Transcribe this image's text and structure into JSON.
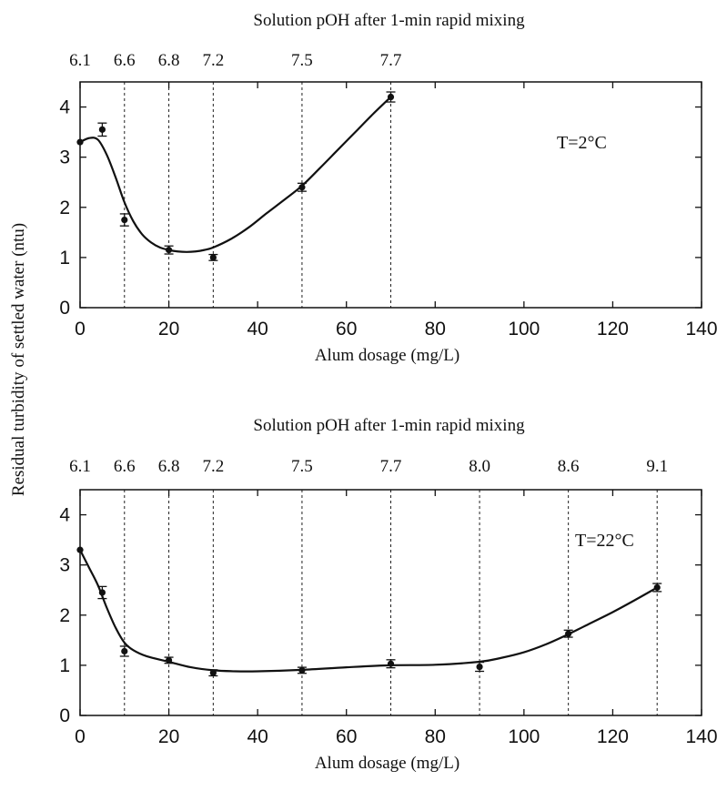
{
  "figure": {
    "shared_ylabel": "Residual turbidity of settled water (ntu)"
  },
  "chart_data": [
    {
      "type": "scatter",
      "title": "Solution pOH after 1-min rapid mixing",
      "xlabel": "Alum dosage (mg/L)",
      "ylabel": "Residual turbidity of settled water (ntu)",
      "xlim": [
        0,
        140
      ],
      "ylim": [
        0,
        4.5
      ],
      "x_ticks": [
        0,
        20,
        40,
        60,
        80,
        100,
        120,
        140
      ],
      "y_ticks": [
        0,
        1,
        2,
        3,
        4
      ],
      "annotation": "T=2°C",
      "top_axis": {
        "positions": [
          0,
          10,
          20,
          30,
          50,
          70
        ],
        "labels": [
          "6.1",
          "6.6",
          "6.8",
          "7.2",
          "7.5",
          "7.7"
        ]
      },
      "vertical_guides": [
        10,
        20,
        30,
        50,
        70
      ],
      "points": [
        {
          "x": 0,
          "y": 3.3,
          "err": 0
        },
        {
          "x": 5,
          "y": 3.55,
          "err": 0.13
        },
        {
          "x": 10,
          "y": 1.75,
          "err": 0.12
        },
        {
          "x": 20,
          "y": 1.15,
          "err": 0.08
        },
        {
          "x": 30,
          "y": 1.0,
          "err": 0.06
        },
        {
          "x": 50,
          "y": 2.4,
          "err": 0.08
        },
        {
          "x": 70,
          "y": 4.2,
          "err": 0.1
        }
      ],
      "fit_curve": {
        "x": [
          0,
          2,
          4,
          6,
          8,
          10,
          12,
          14,
          16,
          18,
          20,
          22,
          24,
          26,
          28,
          30,
          34,
          38,
          42,
          46,
          50,
          54,
          58,
          62,
          66,
          70
        ],
        "y": [
          3.3,
          3.38,
          3.35,
          3.05,
          2.6,
          2.1,
          1.72,
          1.46,
          1.3,
          1.2,
          1.15,
          1.12,
          1.11,
          1.12,
          1.15,
          1.2,
          1.37,
          1.6,
          1.88,
          2.15,
          2.43,
          2.78,
          3.14,
          3.5,
          3.86,
          4.2
        ]
      }
    },
    {
      "type": "scatter",
      "title": "Solution pOH after 1-min rapid mixing",
      "xlabel": "Alum dosage (mg/L)",
      "ylabel": "Residual turbidity of settled water (ntu)",
      "xlim": [
        0,
        140
      ],
      "ylim": [
        0,
        4.5
      ],
      "x_ticks": [
        0,
        20,
        40,
        60,
        80,
        100,
        120,
        140
      ],
      "y_ticks": [
        0,
        1,
        2,
        3,
        4
      ],
      "annotation": "T=22°C",
      "top_axis": {
        "positions": [
          0,
          10,
          20,
          30,
          50,
          70,
          90,
          110,
          130
        ],
        "labels": [
          "6.1",
          "6.6",
          "6.8",
          "7.2",
          "7.5",
          "7.7",
          "8.0",
          "8.6",
          "9.1"
        ]
      },
      "vertical_guides": [
        10,
        20,
        30,
        50,
        70,
        90,
        110,
        130
      ],
      "points": [
        {
          "x": 0,
          "y": 3.3,
          "err": 0
        },
        {
          "x": 5,
          "y": 2.45,
          "err": 0.12
        },
        {
          "x": 10,
          "y": 1.28,
          "err": 0.1
        },
        {
          "x": 20,
          "y": 1.1,
          "err": 0.06
        },
        {
          "x": 30,
          "y": 0.85,
          "err": 0.06
        },
        {
          "x": 50,
          "y": 0.9,
          "err": 0.06
        },
        {
          "x": 70,
          "y": 1.03,
          "err": 0.08
        },
        {
          "x": 90,
          "y": 0.97,
          "err": 0.09
        },
        {
          "x": 110,
          "y": 1.63,
          "err": 0.07
        },
        {
          "x": 130,
          "y": 2.55,
          "err": 0.08
        }
      ],
      "fit_curve": {
        "x": [
          0,
          2,
          4,
          6,
          8,
          10,
          12,
          15,
          20,
          25,
          30,
          35,
          40,
          50,
          60,
          70,
          80,
          90,
          95,
          100,
          105,
          110,
          115,
          120,
          125,
          130
        ],
        "y": [
          3.3,
          2.95,
          2.6,
          2.15,
          1.75,
          1.45,
          1.3,
          1.18,
          1.07,
          0.96,
          0.9,
          0.88,
          0.88,
          0.91,
          0.96,
          1.0,
          1.01,
          1.07,
          1.15,
          1.26,
          1.42,
          1.62,
          1.84,
          2.06,
          2.3,
          2.55
        ]
      }
    }
  ]
}
